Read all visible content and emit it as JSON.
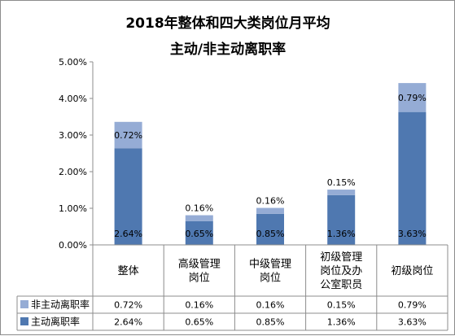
{
  "chart_data": {
    "type": "bar",
    "stacked": true,
    "title": [
      "2018年整体和四大类岗位月平均",
      "主动/非主动离职率"
    ],
    "categories": [
      [
        "整体"
      ],
      [
        "高级管理",
        "岗位"
      ],
      [
        "中级管理",
        "岗位"
      ],
      [
        "初级管理",
        "岗位及办",
        "公室职员"
      ],
      [
        "初级岗位"
      ]
    ],
    "series": [
      {
        "name": "主动离职率",
        "values": [
          2.64,
          0.65,
          0.85,
          1.36,
          3.63
        ],
        "labels": [
          "2.64%",
          "0.65%",
          "0.85%",
          "1.36%",
          "3.63%"
        ],
        "color": "#4f78b0"
      },
      {
        "name": "非主动离职率",
        "values": [
          0.72,
          0.16,
          0.16,
          0.15,
          0.79
        ],
        "labels": [
          "0.72%",
          "0.16%",
          "0.16%",
          "0.15%",
          "0.79%"
        ],
        "color": "#95acd5"
      }
    ],
    "ylim": [
      0,
      5
    ],
    "yticks": [
      "0.00%",
      "1.00%",
      "2.00%",
      "3.00%",
      "4.00%",
      "5.00%"
    ],
    "grid": false,
    "legend": "data-table"
  }
}
